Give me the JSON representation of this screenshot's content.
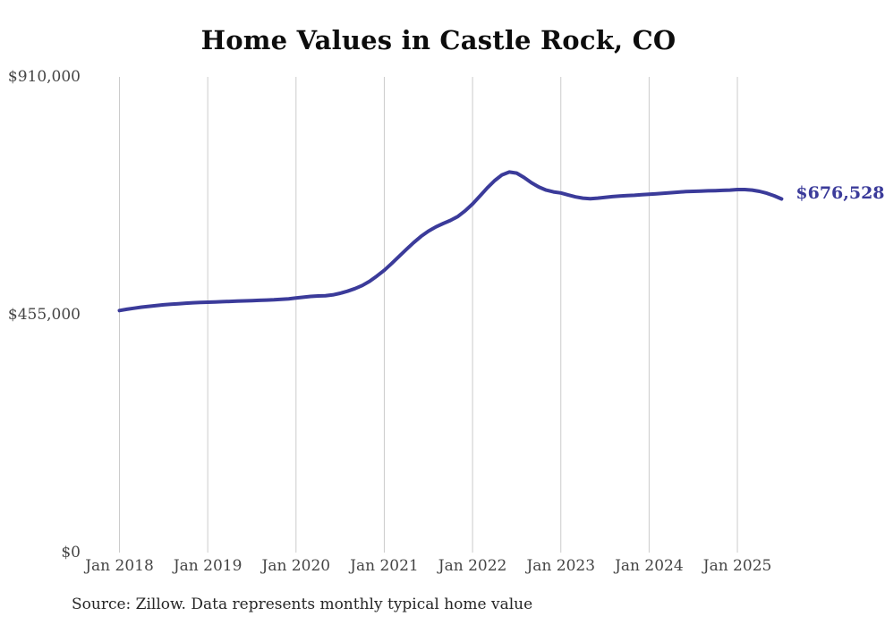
{
  "title": "Home Values in Castle Rock, CO",
  "source_note": "Source: Zillow. Data represents monthly typical home value",
  "colors": {
    "line": "#3b3b9a",
    "end_label": "#3b3b9a",
    "grid": "#cccccc",
    "axis_text": "#454545",
    "title_text": "#0d0d0d",
    "source_text": "#262626",
    "background": "#ffffff"
  },
  "chart_data": {
    "type": "line",
    "title": "Home Values in Castle Rock, CO",
    "xlabel": "",
    "ylabel": "",
    "ylim": [
      0,
      910000
    ],
    "grid": "vertical-only",
    "legend": "none",
    "frequency": "monthly",
    "start_month": "2018-01",
    "end_month": "2025-07",
    "x_tick_labels": [
      "Jan 2018",
      "Jan 2019",
      "Jan 2020",
      "Jan 2021",
      "Jan 2022",
      "Jan 2023",
      "Jan 2024",
      "Jan 2025"
    ],
    "y_ticks": [
      {
        "label": "$0",
        "value": 0
      },
      {
        "label": "$455,000",
        "value": 455000
      },
      {
        "label": "$910,000",
        "value": 910000
      }
    ],
    "last_value": 676528,
    "last_value_label": "$676,528",
    "series": [
      {
        "name": "Typical home value",
        "values": [
          463000,
          465500,
          467500,
          469500,
          471000,
          472500,
          474000,
          475000,
          476000,
          477000,
          478000,
          478500,
          479000,
          479500,
          480000,
          480500,
          481000,
          481500,
          482000,
          482500,
          483000,
          483500,
          484500,
          485500,
          487000,
          488500,
          490000,
          491000,
          491500,
          493000,
          496000,
          500000,
          505000,
          511000,
          519000,
          529000,
          540000,
          553000,
          566500,
          580000,
          593000,
          605000,
          615000,
          623000,
          629500,
          635500,
          643000,
          654000,
          667000,
          682000,
          697500,
          711500,
          722500,
          728000,
          726000,
          717500,
          707500,
          699500,
          693500,
          690000,
          688000,
          684000,
          680500,
          678000,
          677000,
          678000,
          679500,
          681000,
          682000,
          683000,
          683500,
          684500,
          685500,
          686500,
          687500,
          688500,
          689500,
          690500,
          691000,
          691500,
          692000,
          692500,
          693000,
          693500,
          694500,
          694500,
          693500,
          691000,
          687500,
          682500,
          676528
        ]
      }
    ]
  }
}
